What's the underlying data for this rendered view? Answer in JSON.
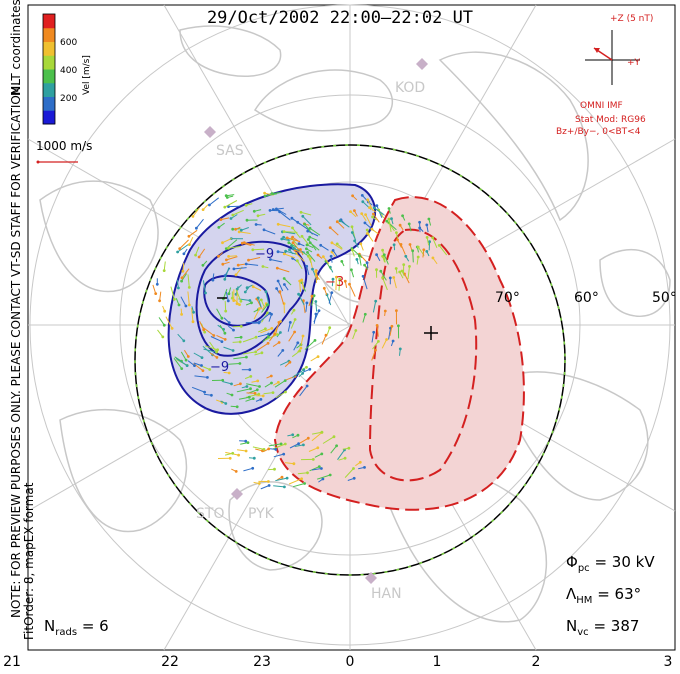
{
  "title": "29/Oct/2002 22:00–22:02 UT",
  "left_notes": {
    "coordinates": "MLT coordinates",
    "preview_note": "NOTE: FOR PREVIEW PURPOSES ONLY. PLEASE CONTACT VT-SD STAFF FOR VERIFICATION.",
    "fit_note": "FitOrder: 8,  mapEX format"
  },
  "colorbar": {
    "label": "Vel [m/s]",
    "ticks": [
      "600",
      "400",
      "200"
    ],
    "colors": [
      "#1a1ad6",
      "#2e6ec8",
      "#2fa0a0",
      "#4cc04c",
      "#a8d83a",
      "#f0c030",
      "#f08a20",
      "#e02020"
    ]
  },
  "scale_vector": {
    "label": "1000 m/s",
    "color": "#d42020"
  },
  "imf": {
    "bz_label": "+Z (5 nT)",
    "by_label": "+Y",
    "lines": [
      "OMNI IMF",
      "Stat Mod: RG96",
      "Bz+/By−, 0<BT<4"
    ]
  },
  "latitude_labels": [
    "70°",
    "60°",
    "50°"
  ],
  "radar_labels": [
    "KOD",
    "SAS",
    "STO",
    "PYK",
    "HAN"
  ],
  "stats": {
    "phi_pc": "Φpc = 30 kV",
    "lambda_hm": "ΛHM = 63°",
    "n_vc": "Nvc = 387",
    "n_rads": "Nrads = 6"
  },
  "stats_parts": {
    "phi_sym": "Φ",
    "phi_sub": "pc",
    "phi_val": "= 30 kV",
    "lam_sym": "Λ",
    "lam_sub": "HM",
    "lam_val": "= 63°",
    "nvc_sym": "N",
    "nvc_sub": "vc",
    "nvc_val": "= 387",
    "nrads_sym": "N",
    "nrads_sub": "rads",
    "nrads_val": "= 6"
  },
  "mlt_ticks": [
    "21",
    "22",
    "23",
    "0",
    "1",
    "2",
    "3"
  ],
  "contour_labels": [
    "−9",
    "−9",
    "−3"
  ],
  "colors": {
    "positive_fill": "#f3d4d4",
    "positive_line": "#d42020",
    "negative_fill": "#d4d4ee",
    "negative_line": "#1a1aa0",
    "coast": "#c8c8c8",
    "grid": "#c8c8c8",
    "hmb_black": "#000000",
    "hmb_green": "#7ad040"
  }
}
